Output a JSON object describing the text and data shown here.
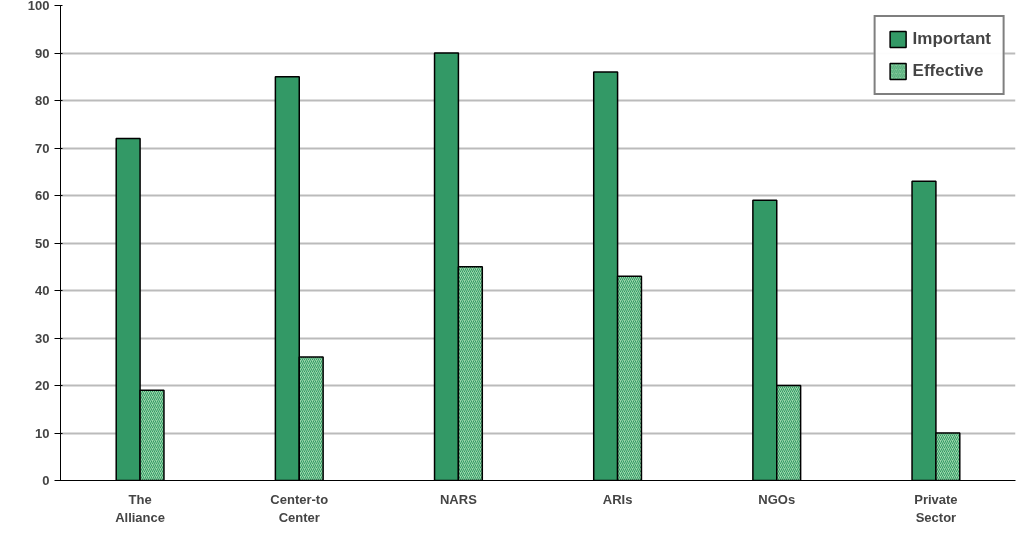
{
  "chart_data": {
    "type": "bar",
    "categories": [
      "The Alliance",
      "Center-to Center",
      "NARS",
      "ARIs",
      "NGOs",
      "Private Sector"
    ],
    "series": [
      {
        "name": "Important",
        "color": "#339966",
        "values": [
          72,
          85,
          90,
          86,
          59,
          63
        ]
      },
      {
        "name": "Effective",
        "color": "#99d6a8",
        "values": [
          19,
          26,
          45,
          43,
          20,
          10
        ]
      }
    ],
    "ylim": [
      0,
      100
    ],
    "yticks": [
      0,
      10,
      20,
      30,
      40,
      50,
      60,
      70,
      80,
      90,
      100
    ],
    "grid": "y",
    "legend": "top right"
  }
}
